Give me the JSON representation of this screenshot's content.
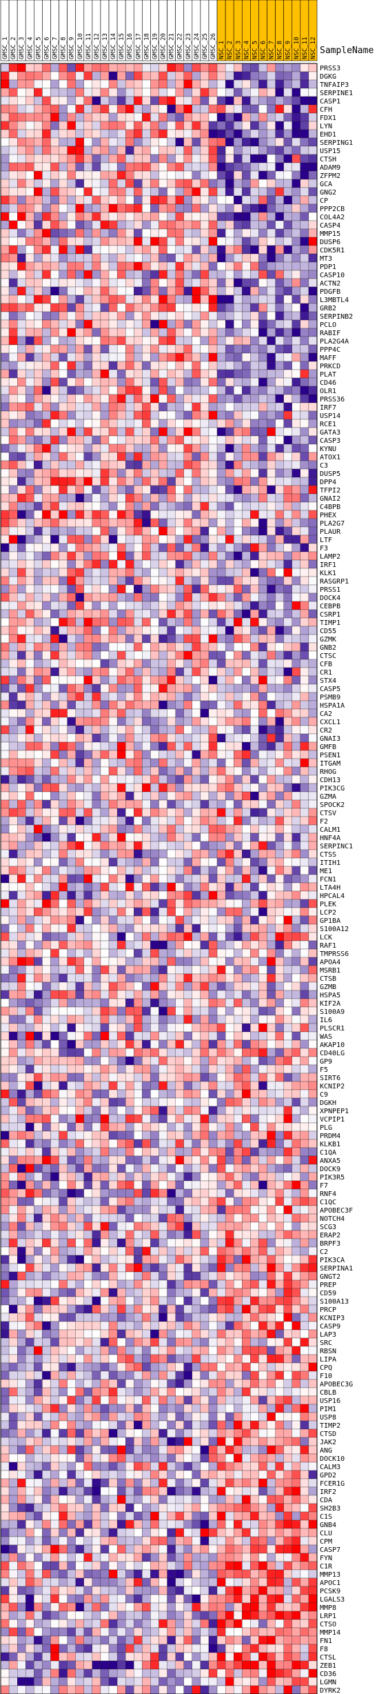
{
  "chart_data": {
    "type": "heatmap",
    "header_label": "SampleName",
    "columns": [
      {
        "name": "GMSC_1",
        "group": "GMSC"
      },
      {
        "name": "GMSC_2",
        "group": "GMSC"
      },
      {
        "name": "GMSC_3",
        "group": "GMSC"
      },
      {
        "name": "GMSC_4",
        "group": "GMSC"
      },
      {
        "name": "GMSC_5",
        "group": "GMSC"
      },
      {
        "name": "GMSC_6",
        "group": "GMSC"
      },
      {
        "name": "GMSC_7",
        "group": "GMSC"
      },
      {
        "name": "GMSC_8",
        "group": "GMSC"
      },
      {
        "name": "GMSC_9",
        "group": "GMSC"
      },
      {
        "name": "GMSC_10",
        "group": "GMSC"
      },
      {
        "name": "GMSC_11",
        "group": "GMSC"
      },
      {
        "name": "GMSC_12",
        "group": "GMSC"
      },
      {
        "name": "GMSC_13",
        "group": "GMSC"
      },
      {
        "name": "GMSC_14",
        "group": "GMSC"
      },
      {
        "name": "GMSC_15",
        "group": "GMSC"
      },
      {
        "name": "GMSC_16",
        "group": "GMSC"
      },
      {
        "name": "GMSC_17",
        "group": "GMSC"
      },
      {
        "name": "GMSC_18",
        "group": "GMSC"
      },
      {
        "name": "GMSC_19",
        "group": "GMSC"
      },
      {
        "name": "GMSC_20",
        "group": "GMSC"
      },
      {
        "name": "GMSC_21",
        "group": "GMSC"
      },
      {
        "name": "GMSC_22",
        "group": "GMSC"
      },
      {
        "name": "GMSC_23",
        "group": "GMSC"
      },
      {
        "name": "GMSC_24",
        "group": "GMSC"
      },
      {
        "name": "GMSC_25",
        "group": "GMSC"
      },
      {
        "name": "GMSC_26",
        "group": "GMSC"
      },
      {
        "name": "NSC_1",
        "group": "NSC"
      },
      {
        "name": "NSC_2",
        "group": "NSC"
      },
      {
        "name": "NSC_3",
        "group": "NSC"
      },
      {
        "name": "NSC_4",
        "group": "NSC"
      },
      {
        "name": "NSC_5",
        "group": "NSC"
      },
      {
        "name": "NSC_6",
        "group": "NSC"
      },
      {
        "name": "NSC_7",
        "group": "NSC"
      },
      {
        "name": "NSC_8",
        "group": "NSC"
      },
      {
        "name": "NSC_9",
        "group": "NSC"
      },
      {
        "name": "NSC_10",
        "group": "NSC"
      },
      {
        "name": "NSC_11",
        "group": "NSC"
      },
      {
        "name": "NSC_12",
        "group": "NSC"
      }
    ],
    "group_colors": {
      "GMSC": "#ffffff",
      "NSC": "#ffc000"
    },
    "rows": [
      "PRSS3",
      "DGKG",
      "TNFAIP3",
      "SERPINE1",
      "CASP1",
      "CFH",
      "FDX1",
      "LYN",
      "EHD1",
      "SERPING1",
      "USP15",
      "CTSH",
      "ADAM9",
      "ZFPM2",
      "GCA",
      "GNG2",
      "CP",
      "PPP2CB",
      "COL4A2",
      "CASP4",
      "MMP15",
      "DUSP6",
      "CDK5R1",
      "MT3",
      "PDP1",
      "CASP10",
      "ACTN2",
      "PDGFB",
      "L3MBTL4",
      "GRB2",
      "SERPINB2",
      "PCLO",
      "RABIF",
      "PLA2G4A",
      "PPP4C",
      "MAFF",
      "PRKCD",
      "PLAT",
      "CD46",
      "OLR1",
      "PRSS36",
      "IRF7",
      "USP14",
      "RCE1",
      "GATA3",
      "CASP3",
      "KYNU",
      "ATOX1",
      "C3",
      "DUSP5",
      "DPP4",
      "TFPI2",
      "GNAI2",
      "C4BPB",
      "PHEX",
      "PLA2G7",
      "PLAUR",
      "LTF",
      "F3",
      "LAMP2",
      "IRF1",
      "KLK1",
      "RASGRP1",
      "PRSS1",
      "DOCK4",
      "CEBPB",
      "CSRP1",
      "TIMP1",
      "CD55",
      "GZMK",
      "GNB2",
      "CTSC",
      "CFB",
      "CR1",
      "STX4",
      "CASP5",
      "PSMB9",
      "HSPA1A",
      "CA2",
      "CXCL1",
      "CR2",
      "GNAI3",
      "GMFB",
      "PSEN1",
      "ITGAM",
      "RHOG",
      "CDH13",
      "PIK3CG",
      "GZMA",
      "SPOCK2",
      "CTSV",
      "F2",
      "CALM1",
      "HNF4A",
      "SERPINC1",
      "CTSS",
      "ITIH1",
      "ME1",
      "FCN1",
      "LTA4H",
      "HPCAL4",
      "PLEK",
      "LCP2",
      "GP1BA",
      "S100A12",
      "LCK",
      "RAF1",
      "TMPRSS6",
      "APOA4",
      "MSRB1",
      "CTSB",
      "GZMB",
      "HSPA5",
      "KIF2A",
      "S100A9",
      "IL6",
      "PLSCR1",
      "WAS",
      "AKAP10",
      "CD40LG",
      "GP9",
      "F5",
      "SIRT6",
      "KCNIP2",
      "C9",
      "DGKH",
      "XPNPEP1",
      "VCPIP1",
      "PLG",
      "PRDM4",
      "KLKB1",
      "C1QA",
      "ANXA5",
      "DOCK9",
      "PIK3R5",
      "F7",
      "RNF4",
      "C1QC",
      "APOBEC3F",
      "NOTCH4",
      "SCG3",
      "ERAP2",
      "BRPF3",
      "C2",
      "PIK3CA",
      "SERPINA1",
      "GNGT2",
      "PREP",
      "CD59",
      "S100A13",
      "PRCP",
      "KCNIP3",
      "CASP9",
      "LAP3",
      "SRC",
      "RBSN",
      "LIPA",
      "CPQ",
      "F10",
      "APOBEC3G",
      "CBLB",
      "USP16",
      "PIM1",
      "USP8",
      "TIMP2",
      "CTSD",
      "JAK2",
      "ANG",
      "DOCK10",
      "CALM3",
      "GPD2",
      "FCER1G",
      "IRF2",
      "CDA",
      "SH2B3",
      "C1S",
      "GNB4",
      "CLU",
      "CPM",
      "CASP7",
      "FYN",
      "C1R",
      "MMP13",
      "APOC1",
      "PCSK9",
      "LGALS3",
      "MMP8",
      "LRP1",
      "CTSO",
      "MMP14",
      "FN1",
      "F8",
      "CTSL",
      "ZEB1",
      "CD36",
      "LGMN",
      "DYRK2"
    ],
    "value_scale": {
      "low": "#2a008a",
      "mid": "#ffffff",
      "high": "#ff0000",
      "range": [
        -3,
        3
      ]
    },
    "seed": 20240517
  }
}
